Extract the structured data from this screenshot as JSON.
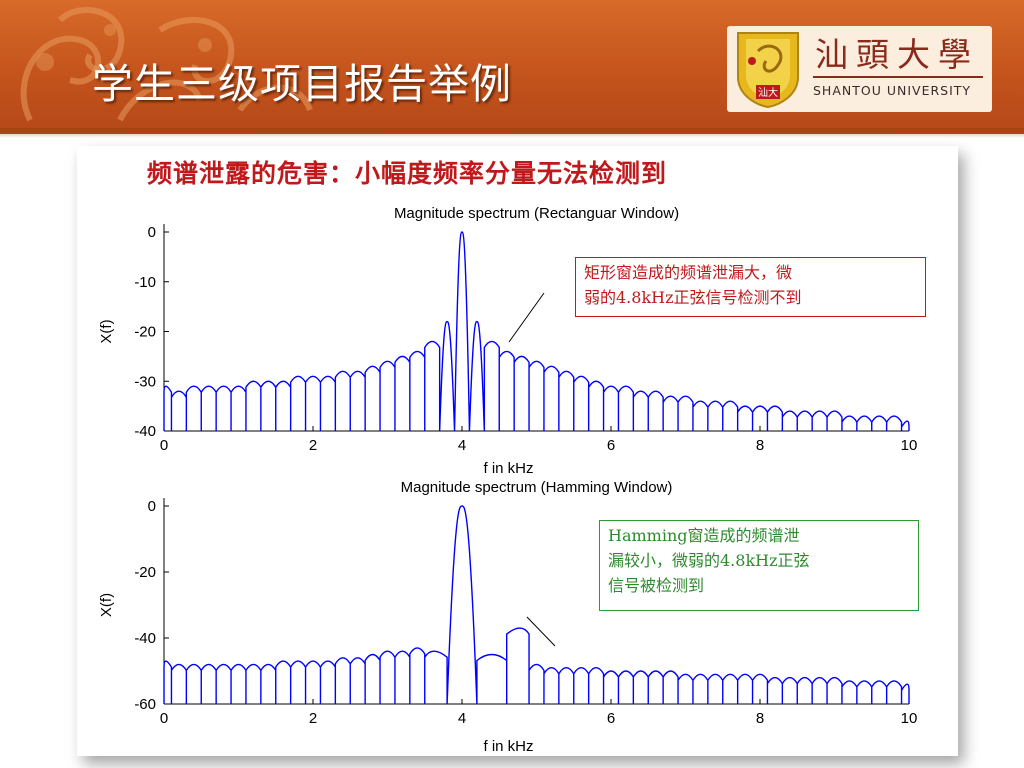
{
  "page_title": "学生三级项目报告举例",
  "logo": {
    "name_cn": "汕頭大學",
    "name_en": "SHANTOU UNIVERSITY",
    "brand_color": "#8a2a1a"
  },
  "colors": {
    "header": "#c4541c",
    "heading": "#c0191c",
    "series": "#0000ff",
    "annotation_red": "#c0191c",
    "annotation_green": "#2e8a2e"
  },
  "slide_heading": "频谱泄露的危害：小幅度频率分量无法检测到",
  "annotations": {
    "rect_lines": [
      "矩形窗造成的频谱泄漏大，微",
      "弱的4.8kHz正弦信号检测不到"
    ],
    "hamming_lines": [
      "Hamming窗造成的频谱泄",
      "漏较小，微弱的4.8kHz正弦",
      "信号被检测到"
    ]
  },
  "chart_data": [
    {
      "type": "line",
      "title": "Magnitude spectrum (Rectanguar Window)",
      "xlabel": "f in kHz",
      "ylabel": "X(f)",
      "xlim": [
        0,
        10
      ],
      "ylim": [
        -40,
        0
      ],
      "xticks": [
        0,
        2,
        4,
        6,
        8,
        10
      ],
      "yticks": [
        0,
        -10,
        -20,
        -30,
        -40
      ],
      "grid": false,
      "series": [
        {
          "x": [
            0.0,
            0.2,
            0.4,
            0.6,
            0.8,
            1.0,
            1.2,
            1.4,
            1.6,
            1.8,
            2.0,
            2.2,
            2.4,
            2.6,
            2.8,
            3.0,
            3.2,
            3.4,
            3.6,
            3.8,
            4.0,
            4.2,
            4.4,
            4.6,
            4.8,
            5.0,
            5.2,
            5.4,
            5.6,
            5.8,
            6.0,
            6.2,
            6.4,
            6.6,
            6.8,
            7.0,
            7.2,
            7.4,
            7.6,
            7.8,
            8.0,
            8.2,
            8.4,
            8.6,
            8.8,
            9.0,
            9.2,
            9.4,
            9.6,
            9.8,
            10.0
          ],
          "y": [
            -31,
            -32,
            -31,
            -31,
            -31,
            -31,
            -30,
            -30,
            -30,
            -29,
            -29,
            -29,
            -28,
            -28,
            -27,
            -26,
            -25,
            -24,
            -22,
            -18,
            0,
            -18,
            -22,
            -24,
            -25,
            -26,
            -27,
            -28,
            -29,
            -30,
            -31,
            -31,
            -32,
            -32,
            -33,
            -33,
            -34,
            -34,
            -34,
            -35,
            -35,
            -35,
            -36,
            -36,
            -36,
            -36,
            -37,
            -37,
            -37,
            -37,
            -38
          ]
        }
      ]
    },
    {
      "type": "line",
      "title": "Magnitude spectrum (Hamming Window)",
      "xlabel": "f in kHz",
      "ylabel": "X(f)",
      "xlim": [
        0,
        10
      ],
      "ylim": [
        -60,
        0
      ],
      "xticks": [
        0,
        2,
        4,
        6,
        8,
        10
      ],
      "yticks": [
        0,
        -20,
        -40,
        -60
      ],
      "grid": false,
      "series": [
        {
          "x": [
            0.0,
            0.2,
            0.4,
            0.6,
            0.8,
            1.0,
            1.2,
            1.4,
            1.6,
            1.8,
            2.0,
            2.2,
            2.4,
            2.6,
            2.8,
            3.0,
            3.2,
            3.4,
            3.6,
            4.0,
            4.4,
            4.8,
            5.0,
            5.2,
            5.4,
            5.6,
            5.8,
            6.0,
            6.2,
            6.4,
            6.6,
            6.8,
            7.0,
            7.2,
            7.4,
            7.6,
            7.8,
            8.0,
            8.2,
            8.4,
            8.6,
            8.8,
            9.0,
            9.2,
            9.4,
            9.6,
            9.8,
            10.0
          ],
          "y": [
            -47,
            -48,
            -48,
            -48,
            -48,
            -48,
            -48,
            -48,
            -47,
            -47,
            -47,
            -47,
            -46,
            -46,
            -45,
            -44,
            -44,
            -43,
            -44,
            0,
            -45,
            -37,
            -48,
            -49,
            -49,
            -49,
            -49,
            -50,
            -50,
            -50,
            -50,
            -50,
            -51,
            -51,
            -51,
            -51,
            -51,
            -51,
            -52,
            -52,
            -52,
            -52,
            -52,
            -53,
            -53,
            -53,
            -53,
            -54
          ]
        }
      ]
    }
  ]
}
